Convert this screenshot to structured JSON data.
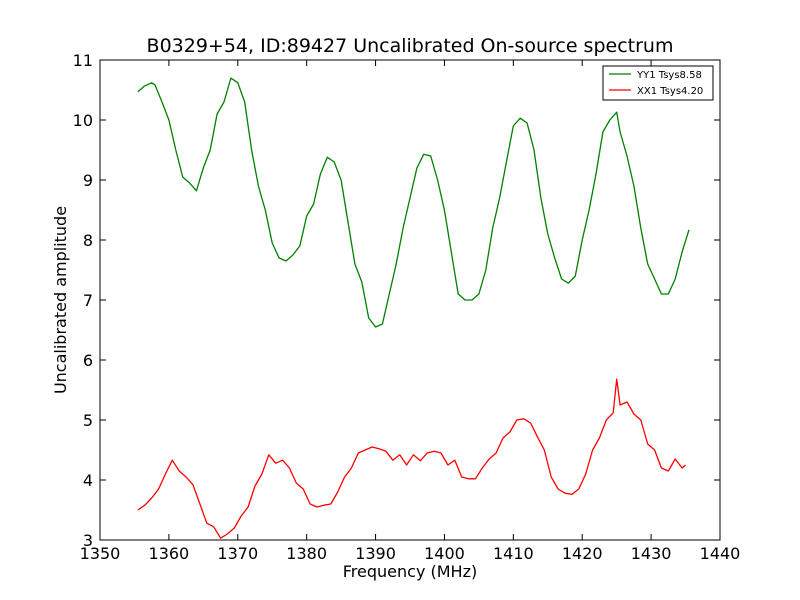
{
  "chart_data": {
    "type": "line",
    "title": "B0329+54, ID:89427 Uncalibrated On-source spectrum",
    "xlabel": "Frequency (MHz)",
    "ylabel": "Uncalibrated amplitude",
    "xlim": [
      1350,
      1440
    ],
    "ylim": [
      3,
      11
    ],
    "xticks": [
      "1350",
      "1360",
      "1370",
      "1380",
      "1390",
      "1400",
      "1410",
      "1420",
      "1430",
      "1440"
    ],
    "yticks": [
      "3",
      "4",
      "5",
      "6",
      "7",
      "8",
      "9",
      "10",
      "11"
    ],
    "grid": false,
    "legend_position": "top-right",
    "series": [
      {
        "name": "YY1 Tsys8.58",
        "color": "#008000",
        "points": [
          [
            1355.5,
            10.47
          ],
          [
            1356.5,
            10.57
          ],
          [
            1357.5,
            10.62
          ],
          [
            1358.0,
            10.58
          ],
          [
            1359.0,
            10.3
          ],
          [
            1360.0,
            10.0
          ],
          [
            1361.0,
            9.5
          ],
          [
            1362.0,
            9.05
          ],
          [
            1363.0,
            8.95
          ],
          [
            1364.0,
            8.82
          ],
          [
            1365.0,
            9.2
          ],
          [
            1366.0,
            9.5
          ],
          [
            1367.0,
            10.1
          ],
          [
            1368.0,
            10.3
          ],
          [
            1369.0,
            10.7
          ],
          [
            1370.0,
            10.62
          ],
          [
            1371.0,
            10.3
          ],
          [
            1372.0,
            9.5
          ],
          [
            1373.0,
            8.9
          ],
          [
            1374.0,
            8.5
          ],
          [
            1375.0,
            7.95
          ],
          [
            1376.0,
            7.7
          ],
          [
            1377.0,
            7.65
          ],
          [
            1378.0,
            7.75
          ],
          [
            1379.0,
            7.9
          ],
          [
            1380.0,
            8.4
          ],
          [
            1381.0,
            8.6
          ],
          [
            1382.0,
            9.1
          ],
          [
            1383.0,
            9.38
          ],
          [
            1384.0,
            9.3
          ],
          [
            1385.0,
            9.0
          ],
          [
            1386.0,
            8.3
          ],
          [
            1387.0,
            7.6
          ],
          [
            1388.0,
            7.3
          ],
          [
            1389.0,
            6.7
          ],
          [
            1390.0,
            6.55
          ],
          [
            1391.0,
            6.6
          ],
          [
            1392.0,
            7.1
          ],
          [
            1393.0,
            7.6
          ],
          [
            1394.0,
            8.2
          ],
          [
            1395.0,
            8.7
          ],
          [
            1396.0,
            9.2
          ],
          [
            1397.0,
            9.43
          ],
          [
            1398.0,
            9.4
          ],
          [
            1399.0,
            9.0
          ],
          [
            1400.0,
            8.5
          ],
          [
            1401.0,
            7.8
          ],
          [
            1402.0,
            7.1
          ],
          [
            1403.0,
            7.0
          ],
          [
            1404.0,
            7.0
          ],
          [
            1405.0,
            7.1
          ],
          [
            1406.0,
            7.5
          ],
          [
            1407.0,
            8.2
          ],
          [
            1408.0,
            8.7
          ],
          [
            1409.0,
            9.3
          ],
          [
            1410.0,
            9.9
          ],
          [
            1411.0,
            10.03
          ],
          [
            1412.0,
            9.95
          ],
          [
            1413.0,
            9.5
          ],
          [
            1414.0,
            8.7
          ],
          [
            1415.0,
            8.1
          ],
          [
            1416.0,
            7.7
          ],
          [
            1417.0,
            7.35
          ],
          [
            1418.0,
            7.28
          ],
          [
            1419.0,
            7.4
          ],
          [
            1420.0,
            8.0
          ],
          [
            1421.0,
            8.5
          ],
          [
            1422.0,
            9.1
          ],
          [
            1423.0,
            9.8
          ],
          [
            1424.0,
            10.0
          ],
          [
            1425.0,
            10.13
          ],
          [
            1425.5,
            9.8
          ],
          [
            1426.5,
            9.4
          ],
          [
            1427.5,
            8.9
          ],
          [
            1428.5,
            8.2
          ],
          [
            1429.5,
            7.6
          ],
          [
            1430.5,
            7.35
          ],
          [
            1431.5,
            7.1
          ],
          [
            1432.5,
            7.1
          ],
          [
            1433.5,
            7.35
          ],
          [
            1434.5,
            7.8
          ],
          [
            1435.5,
            8.17
          ]
        ]
      },
      {
        "name": "XX1 Tsys4.20",
        "color": "#ff0000",
        "points": [
          [
            1355.5,
            3.5
          ],
          [
            1356.5,
            3.58
          ],
          [
            1357.5,
            3.7
          ],
          [
            1358.5,
            3.85
          ],
          [
            1359.5,
            4.1
          ],
          [
            1360.5,
            4.33
          ],
          [
            1361.5,
            4.15
          ],
          [
            1362.5,
            4.05
          ],
          [
            1363.5,
            3.92
          ],
          [
            1364.5,
            3.6
          ],
          [
            1365.5,
            3.28
          ],
          [
            1366.5,
            3.22
          ],
          [
            1367.5,
            3.03
          ],
          [
            1368.5,
            3.1
          ],
          [
            1369.5,
            3.2
          ],
          [
            1370.5,
            3.4
          ],
          [
            1371.5,
            3.55
          ],
          [
            1372.5,
            3.9
          ],
          [
            1373.5,
            4.1
          ],
          [
            1374.5,
            4.42
          ],
          [
            1375.5,
            4.28
          ],
          [
            1376.5,
            4.33
          ],
          [
            1377.5,
            4.2
          ],
          [
            1378.5,
            3.95
          ],
          [
            1379.5,
            3.85
          ],
          [
            1380.5,
            3.6
          ],
          [
            1381.5,
            3.55
          ],
          [
            1382.5,
            3.58
          ],
          [
            1383.5,
            3.6
          ],
          [
            1384.5,
            3.8
          ],
          [
            1385.5,
            4.05
          ],
          [
            1386.5,
            4.2
          ],
          [
            1387.5,
            4.45
          ],
          [
            1388.5,
            4.5
          ],
          [
            1389.5,
            4.55
          ],
          [
            1390.5,
            4.52
          ],
          [
            1391.5,
            4.48
          ],
          [
            1392.5,
            4.33
          ],
          [
            1393.5,
            4.42
          ],
          [
            1394.5,
            4.25
          ],
          [
            1395.5,
            4.42
          ],
          [
            1396.5,
            4.32
          ],
          [
            1397.5,
            4.45
          ],
          [
            1398.5,
            4.48
          ],
          [
            1399.5,
            4.45
          ],
          [
            1400.5,
            4.25
          ],
          [
            1401.5,
            4.33
          ],
          [
            1402.5,
            4.05
          ],
          [
            1403.5,
            4.02
          ],
          [
            1404.5,
            4.02
          ],
          [
            1405.5,
            4.2
          ],
          [
            1406.5,
            4.35
          ],
          [
            1407.5,
            4.45
          ],
          [
            1408.5,
            4.7
          ],
          [
            1409.5,
            4.8
          ],
          [
            1410.5,
            5.0
          ],
          [
            1411.5,
            5.02
          ],
          [
            1412.5,
            4.95
          ],
          [
            1413.5,
            4.72
          ],
          [
            1414.5,
            4.5
          ],
          [
            1415.5,
            4.05
          ],
          [
            1416.5,
            3.85
          ],
          [
            1417.5,
            3.78
          ],
          [
            1418.5,
            3.76
          ],
          [
            1419.5,
            3.85
          ],
          [
            1420.5,
            4.1
          ],
          [
            1421.5,
            4.5
          ],
          [
            1422.5,
            4.7
          ],
          [
            1423.5,
            5.0
          ],
          [
            1424.5,
            5.12
          ],
          [
            1425.0,
            5.68
          ],
          [
            1425.5,
            5.25
          ],
          [
            1426.5,
            5.3
          ],
          [
            1427.5,
            5.1
          ],
          [
            1428.5,
            5.0
          ],
          [
            1429.5,
            4.6
          ],
          [
            1430.5,
            4.5
          ],
          [
            1431.5,
            4.2
          ],
          [
            1432.5,
            4.15
          ],
          [
            1433.5,
            4.35
          ],
          [
            1434.5,
            4.2
          ],
          [
            1435.0,
            4.25
          ]
        ]
      }
    ]
  }
}
